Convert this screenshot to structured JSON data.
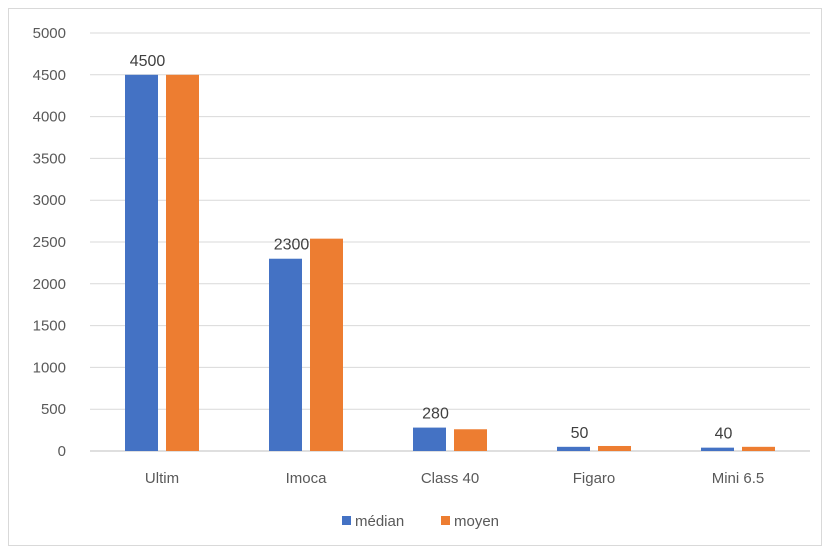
{
  "chart_data": {
    "type": "bar",
    "title": "",
    "xlabel": "",
    "ylabel": "",
    "categories": [
      "Ultim",
      "Imoca",
      "Class 40",
      "Figaro",
      "Mini 6.5"
    ],
    "series": [
      {
        "name": "médian",
        "color": "#4472C4",
        "values": [
          4500,
          2300,
          280,
          50,
          40
        ]
      },
      {
        "name": "moyen",
        "color": "#ED7D31",
        "values": [
          4500,
          2540,
          260,
          60,
          50
        ]
      }
    ],
    "data_labels": [
      "4500",
      "2300",
      "280",
      "50",
      "40"
    ],
    "ylim": [
      0,
      5000
    ],
    "yticks": [
      0,
      500,
      1000,
      1500,
      2000,
      2500,
      3000,
      3500,
      4000,
      4500,
      5000
    ],
    "grid": true,
    "legend_position": "bottom"
  }
}
